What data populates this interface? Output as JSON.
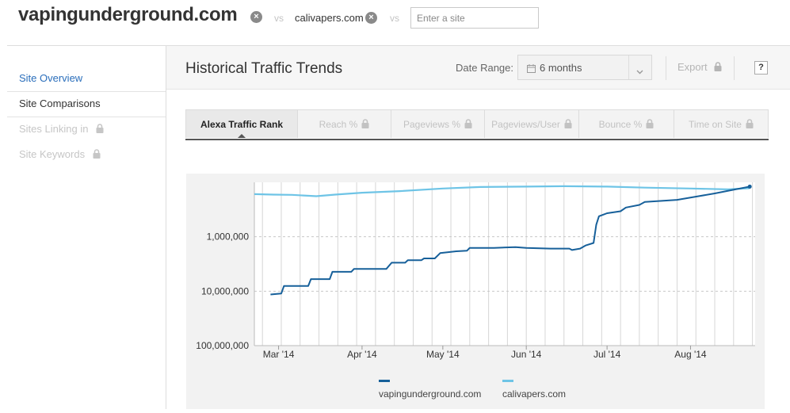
{
  "compare": {
    "site1": "vapingunderground.com",
    "vs1": "vs",
    "site2": "calivapers.com",
    "vs2": "vs",
    "input_placeholder": "Enter a site"
  },
  "sidebar": {
    "items": [
      {
        "label": "Site Overview",
        "state": "link",
        "color": "#2a6ebb"
      },
      {
        "label": "Site Comparisons",
        "state": "active",
        "color": "#333333"
      },
      {
        "label": "Sites Linking in",
        "state": "locked",
        "color": "#c6c6c6"
      },
      {
        "label": "Site Keywords",
        "state": "locked",
        "color": "#c6c6c6"
      }
    ]
  },
  "header": {
    "title": "Historical Traffic Trends",
    "date_range_label": "Date Range:",
    "date_range_value": "6 months",
    "export_label": "Export",
    "help_label": "?"
  },
  "tabs": [
    {
      "label": "Alexa Traffic Rank",
      "active": true,
      "locked": false
    },
    {
      "label": "Reach %",
      "active": false,
      "locked": true
    },
    {
      "label": "Pageviews %",
      "active": false,
      "locked": true
    },
    {
      "label": "Pageviews/User",
      "active": false,
      "locked": true
    },
    {
      "label": "Bounce %",
      "active": false,
      "locked": true
    },
    {
      "label": "Time on Site",
      "active": false,
      "locked": true
    }
  ],
  "colors": {
    "accent_link": "#2a6ebb",
    "series_dark": "#17609a",
    "series_light": "#6ec4e6",
    "grid": "#d6d6d6"
  },
  "chart_data": {
    "type": "line",
    "y_scale": "log-reversed",
    "ylim": [
      100000000,
      100000
    ],
    "y_ticks": [
      1000000,
      10000000,
      100000000
    ],
    "y_tick_labels": [
      "1,000,000",
      "10,000,000",
      "100,000,000"
    ],
    "x_start": "2014-02-20",
    "x_end": "2014-08-25",
    "x_ticks": [
      {
        "label": "Mar '14",
        "date": "2014-03-01"
      },
      {
        "label": "Apr '14",
        "date": "2014-04-01"
      },
      {
        "label": "May '14",
        "date": "2014-05-01"
      },
      {
        "label": "Jun '14",
        "date": "2014-06-01"
      },
      {
        "label": "Jul '14",
        "date": "2014-07-01"
      },
      {
        "label": "Aug '14",
        "date": "2014-08-01"
      }
    ],
    "grid": true,
    "legend_position": "bottom",
    "series": [
      {
        "name": "vapingunderground.com",
        "color": "#17609a",
        "points": [
          [
            "2014-02-26",
            11500000
          ],
          [
            "2014-03-02",
            11000000
          ],
          [
            "2014-03-03",
            8000000
          ],
          [
            "2014-03-12",
            8000000
          ],
          [
            "2014-03-13",
            6000000
          ],
          [
            "2014-03-20",
            6000000
          ],
          [
            "2014-03-21",
            4400000
          ],
          [
            "2014-03-28",
            4400000
          ],
          [
            "2014-03-29",
            3900000
          ],
          [
            "2014-04-10",
            3900000
          ],
          [
            "2014-04-12",
            3000000
          ],
          [
            "2014-04-17",
            3000000
          ],
          [
            "2014-04-18",
            2700000
          ],
          [
            "2014-04-23",
            2700000
          ],
          [
            "2014-04-24",
            2500000
          ],
          [
            "2014-04-28",
            2500000
          ],
          [
            "2014-04-30",
            2000000
          ],
          [
            "2014-05-06",
            1850000
          ],
          [
            "2014-05-10",
            1800000
          ],
          [
            "2014-05-11",
            1600000
          ],
          [
            "2014-05-20",
            1600000
          ],
          [
            "2014-05-28",
            1550000
          ],
          [
            "2014-06-01",
            1600000
          ],
          [
            "2014-06-10",
            1650000
          ],
          [
            "2014-06-17",
            1650000
          ],
          [
            "2014-06-18",
            1750000
          ],
          [
            "2014-06-21",
            1650000
          ],
          [
            "2014-06-23",
            1450000
          ],
          [
            "2014-06-26",
            1300000
          ],
          [
            "2014-06-27",
            600000
          ],
          [
            "2014-06-28",
            420000
          ],
          [
            "2014-07-01",
            370000
          ],
          [
            "2014-07-06",
            340000
          ],
          [
            "2014-07-08",
            290000
          ],
          [
            "2014-07-13",
            260000
          ],
          [
            "2014-07-15",
            230000
          ],
          [
            "2014-07-27",
            210000
          ],
          [
            "2014-08-04",
            180000
          ],
          [
            "2014-08-10",
            160000
          ],
          [
            "2014-08-16",
            140000
          ],
          [
            "2014-08-21",
            125000
          ],
          [
            "2014-08-23",
            120000
          ]
        ]
      },
      {
        "name": "calivapers.com",
        "color": "#6ec4e6",
        "points": [
          [
            "2014-02-20",
            165000
          ],
          [
            "2014-02-27",
            168000
          ],
          [
            "2014-03-06",
            170000
          ],
          [
            "2014-03-15",
            180000
          ],
          [
            "2014-03-22",
            168000
          ],
          [
            "2014-04-01",
            155000
          ],
          [
            "2014-04-15",
            145000
          ],
          [
            "2014-05-01",
            130000
          ],
          [
            "2014-05-15",
            122000
          ],
          [
            "2014-06-01",
            120000
          ],
          [
            "2014-06-15",
            118000
          ],
          [
            "2014-07-01",
            120000
          ],
          [
            "2014-07-15",
            125000
          ],
          [
            "2014-08-01",
            130000
          ],
          [
            "2014-08-15",
            135000
          ],
          [
            "2014-08-23",
            128000
          ]
        ]
      }
    ]
  }
}
